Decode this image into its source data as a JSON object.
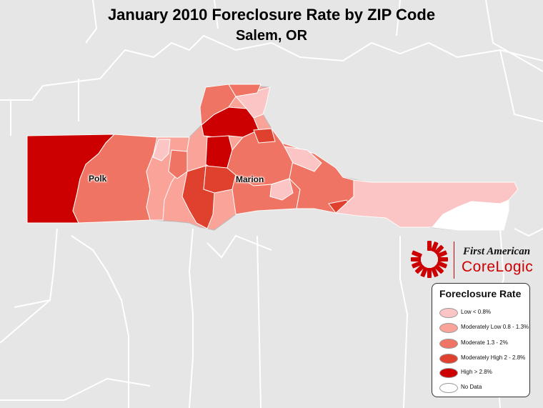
{
  "title": "January 2010 Foreclosure Rate by ZIP Code",
  "subtitle": "Salem, OR",
  "place_labels": {
    "polk": "Polk",
    "marion": "Marion"
  },
  "logo": {
    "line1": "First American",
    "line2": "CoreLogic"
  },
  "legend": {
    "title": "Foreclosure Rate",
    "items": [
      {
        "label": "Low  < 0.8%",
        "color": "#fcc5c5"
      },
      {
        "label": "Moderately Low  0.8 - 1.3%",
        "color": "#f9a399"
      },
      {
        "label": "Moderate  1.3 - 2%",
        "color": "#f07463"
      },
      {
        "label": "Moderately High  2 - 2.8%",
        "color": "#e0402e"
      },
      {
        "label": "High  > 2.8%",
        "color": "#cc0000"
      },
      {
        "label": "No Data",
        "color": "#ffffff"
      }
    ]
  },
  "colors": {
    "background": "#e6e6e6",
    "boundary": "#ffffff",
    "brand_red": "#cc0000"
  }
}
